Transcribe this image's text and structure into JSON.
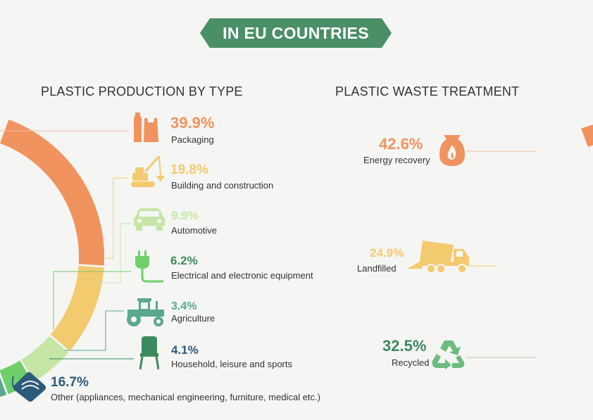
{
  "banner": {
    "text": "IN EU COUNTRIES",
    "color": "#4a8f68"
  },
  "colors": {
    "orange": "#f0935e",
    "yellow": "#f4ca6e",
    "lightgreen": "#c5e6a6",
    "green": "#6fcf6a",
    "teal": "#5aa88f",
    "darkgreen": "#3b8a5d",
    "navy": "#2e5a7a",
    "line": "#f2bf9d"
  },
  "icons": {
    "packaging": "bottle-bag-icon",
    "building": "crane-icon",
    "automotive": "car-icon",
    "electrical": "plug-icon",
    "agriculture": "tractor-icon",
    "household": "chair-icon",
    "other": "mask-icon",
    "energy": "sack-flame-icon",
    "landfill": "dump-truck-icon",
    "recycle": "recycle-icon"
  },
  "chart_data": [
    {
      "type": "pie",
      "title": "PLASTIC PRODUCTION BY TYPE",
      "slices": [
        {
          "label": "Packaging",
          "value": 39.9,
          "display": "39.9%",
          "color": "#f0935e"
        },
        {
          "label": "Building and construction",
          "value": 19.8,
          "display": "19.8%",
          "color": "#f4ca6e"
        },
        {
          "label": "Automotive",
          "value": 9.9,
          "display": "9.9%",
          "color": "#c5e6a6"
        },
        {
          "label": "Electrical and electronic equipment",
          "value": 6.2,
          "display": "6.2%",
          "color": "#6fcf6a"
        },
        {
          "label": "Agriculture",
          "value": 3.4,
          "display": "3.4%",
          "color": "#5aa88f"
        },
        {
          "label": "Household, leisure and sports",
          "value": 4.1,
          "display": "4.1%",
          "color": "#3b8a5d"
        },
        {
          "label": "Other (appliances, mechanical engineering, furniture, medical etc.)",
          "value": 16.7,
          "display": "16.7%",
          "color": "#2e5a7a"
        }
      ]
    },
    {
      "type": "pie",
      "title": "PLASTIC WASTE TREATMENT",
      "slices": [
        {
          "label": "Energy recovery",
          "value": 42.6,
          "display": "42.6%",
          "color": "#f0935e"
        },
        {
          "label": "Landfilled",
          "value": 24.9,
          "display": "24.9%",
          "color": "#f4ca6e"
        },
        {
          "label": "Recycled",
          "value": 32.5,
          "display": "32.5%",
          "color": "#3b8a5d"
        }
      ]
    }
  ]
}
